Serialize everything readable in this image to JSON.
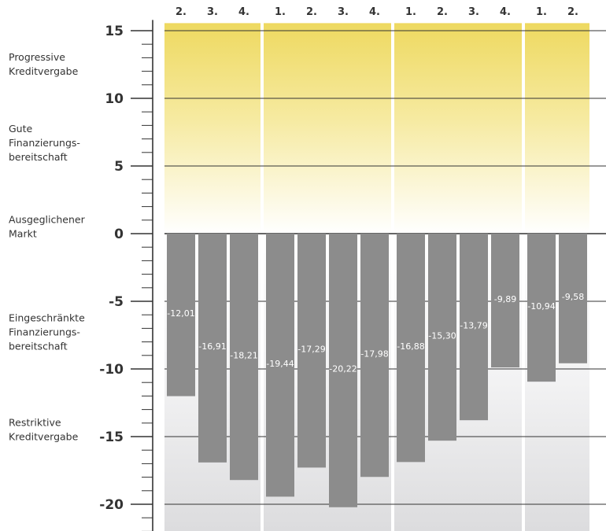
{
  "chart_data": {
    "type": "bar",
    "categories": [
      "2.",
      "3.",
      "4.",
      "1.",
      "2.",
      "3.",
      "4.",
      "1.",
      "2.",
      "3.",
      "4.",
      "1.",
      "2."
    ],
    "groups": [
      {
        "categories": [
          "2.",
          "3.",
          "4."
        ]
      },
      {
        "categories": [
          "1.",
          "2.",
          "3.",
          "4."
        ]
      },
      {
        "categories": [
          "1.",
          "2.",
          "3.",
          "4."
        ]
      },
      {
        "categories": [
          "1.",
          "2."
        ]
      }
    ],
    "values": [
      -12.01,
      -16.91,
      -18.21,
      -19.44,
      -17.29,
      -20.22,
      -17.98,
      -16.88,
      -15.3,
      -13.79,
      -9.89,
      -10.94,
      -9.58
    ],
    "value_labels": [
      "-12,01",
      "-16,91",
      "-18,21",
      "-19,44",
      "-17,29",
      "-20,22",
      "-17,98",
      "-16,88",
      "-15,30",
      "-13,79",
      "-9,89",
      "-10,94",
      "-9,58"
    ],
    "yticks": [
      15,
      10,
      5,
      0,
      -5,
      -10,
      -15,
      -20
    ],
    "ytick_labels": [
      "15",
      "10",
      "5",
      "0",
      "-5",
      "-10",
      "-15",
      "-20"
    ],
    "ylim": [
      -22,
      15.5
    ],
    "grid": true,
    "zones": [
      {
        "lines": [
          "Progressive",
          "Kreditvergabe"
        ],
        "center": 12.5
      },
      {
        "lines": [
          "Gute",
          "Finanzierungs-",
          "bereitschaft"
        ],
        "center": 6.7
      },
      {
        "lines": [
          "Ausgeglichener",
          "Markt"
        ],
        "center": 0.5
      },
      {
        "lines": [
          "Eingeschränkte",
          "Finanzierungs-",
          "bereitschaft"
        ],
        "center": -7.3
      },
      {
        "lines": [
          "Restriktive",
          "Kreditvergabe"
        ],
        "center": -14.5
      }
    ],
    "colors": {
      "bar": "#8c8c8c",
      "positive_zone_top": "#eed960",
      "negative_zone": "#dcdcde",
      "grid": "#333333",
      "text": "#333333",
      "bar_label": "#ffffff"
    }
  }
}
